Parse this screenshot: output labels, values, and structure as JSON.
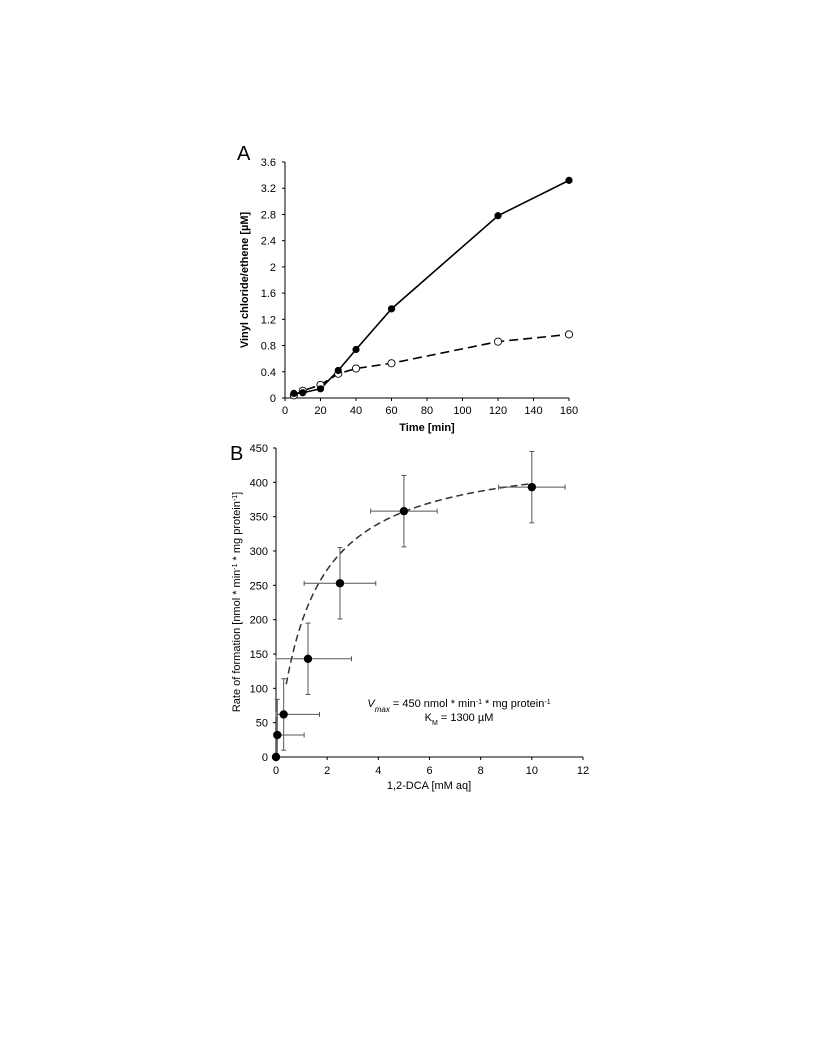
{
  "chart_data": [
    {
      "type": "line",
      "panel_label": "A",
      "xlabel": "Time [min]",
      "ylabel": "Vinyl chloride/ethene [µM]",
      "xlim": [
        0,
        160
      ],
      "ylim": [
        0,
        3.6
      ],
      "xticks": [
        "0",
        "20",
        "40",
        "60",
        "80",
        "100",
        "120",
        "140",
        "160"
      ],
      "yticks": [
        "0",
        "0.4",
        "0.8",
        "1.2",
        "1.6",
        "2",
        "2.4",
        "2.8",
        "3.2",
        "3.6"
      ],
      "grid": false,
      "series": [
        {
          "style": "solid line, filled circles",
          "color": "#000000",
          "x": [
            5,
            10,
            20,
            30,
            40,
            60,
            120,
            160
          ],
          "y": [
            0.07,
            0.08,
            0.14,
            0.42,
            0.74,
            1.36,
            2.78,
            3.32
          ]
        },
        {
          "style": "dashed line, open circles",
          "color": "#000000",
          "x": [
            5,
            10,
            20,
            30,
            40,
            60,
            120,
            160
          ],
          "y": [
            0.04,
            0.11,
            0.2,
            0.37,
            0.45,
            0.53,
            0.86,
            0.97
          ]
        }
      ]
    },
    {
      "type": "scatter",
      "panel_label": "B",
      "xlabel": "1,2-DCA [mM aq]",
      "ylabel_parts": [
        "Rate of formation [nmol * min",
        "-1",
        " * mg protein",
        "-1",
        "]"
      ],
      "xlim": [
        0,
        12
      ],
      "ylim": [
        0,
        450
      ],
      "xticks": [
        "0",
        "2",
        "4",
        "6",
        "8",
        "10",
        "12"
      ],
      "yticks": [
        "0",
        "50",
        "100",
        "150",
        "200",
        "250",
        "300",
        "350",
        "400",
        "450"
      ],
      "grid": false,
      "points": {
        "x": [
          0,
          0.05,
          0.3,
          1.25,
          2.5,
          5,
          10
        ],
        "y": [
          0,
          32,
          62,
          143,
          253,
          358,
          393
        ],
        "xerr": [
          0,
          1.05,
          1.4,
          1.7,
          1.4,
          1.3,
          1.3
        ],
        "yerr": [
          0,
          52,
          52,
          52,
          52,
          52,
          52
        ]
      },
      "fit": {
        "model": "Michaelis-Menten",
        "style": "dashed",
        "vmax": 450,
        "km_mM": 1.3
      },
      "annotations": {
        "vmax_parts": [
          "V",
          "max",
          " = 450 nmol * min",
          "-1",
          " * mg protein",
          "-1"
        ],
        "km_parts": [
          "K",
          "M",
          " = 1300 µM"
        ]
      }
    }
  ]
}
